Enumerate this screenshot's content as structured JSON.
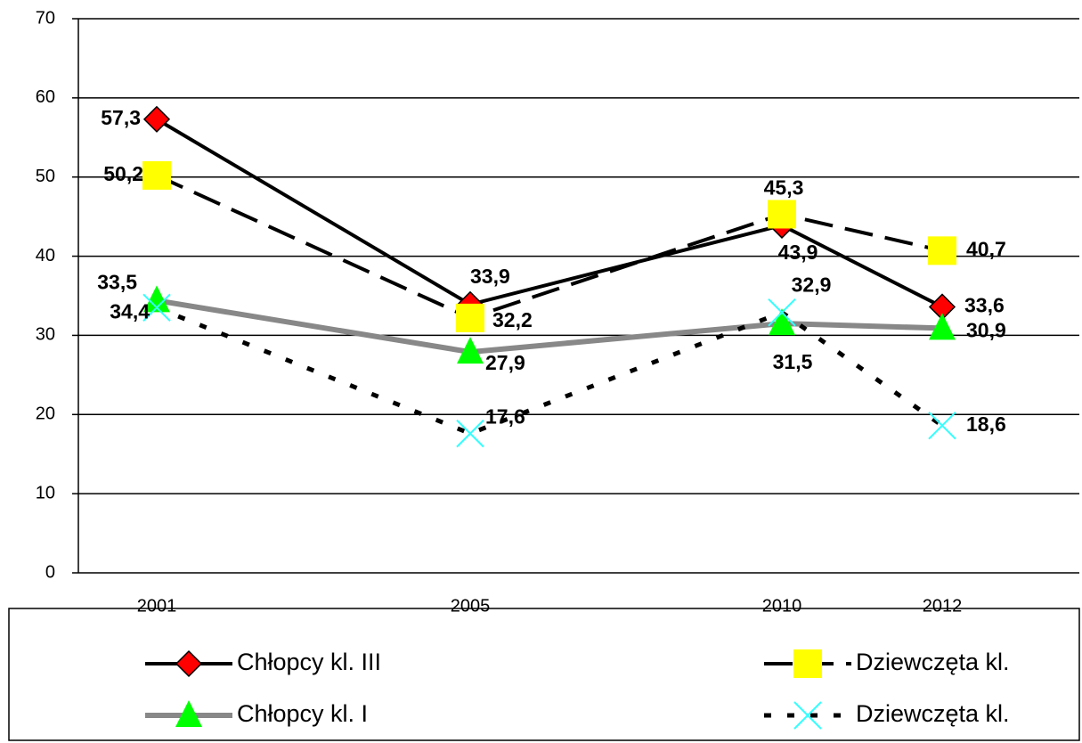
{
  "chart_data": {
    "type": "line",
    "categories": [
      "2001",
      "2005",
      "2010",
      "2012"
    ],
    "series": [
      {
        "name": "Chłopcy kl. III",
        "color": "#ff0000",
        "values": [
          57.3,
          33.9,
          43.9,
          33.6
        ],
        "value_labels": [
          "57,3",
          "33,9",
          "43,9",
          "33,6"
        ]
      },
      {
        "name": "Dziewczęta kl.",
        "color": "#ffff00",
        "values": [
          50.2,
          32.2,
          45.3,
          40.7
        ],
        "value_labels": [
          "50,2",
          "32,2",
          "45,3",
          "40,7"
        ]
      },
      {
        "name": "Chłopcy kl. I",
        "color": "#00ff00",
        "values": [
          34.4,
          27.9,
          31.5,
          30.9
        ],
        "value_labels": [
          "34,4",
          "27,9",
          "31,5",
          "30,9"
        ]
      },
      {
        "name": "Dziewczęta kl.",
        "color": "#33ffff",
        "values": [
          33.5,
          17.6,
          32.9,
          18.6
        ],
        "value_labels": [
          "33,5",
          "17,6",
          "32,9",
          "18,6"
        ]
      }
    ],
    "ylim": [
      0,
      70
    ],
    "yticks": [
      0,
      10,
      20,
      30,
      40,
      50,
      60,
      70
    ],
    "grid": true
  }
}
